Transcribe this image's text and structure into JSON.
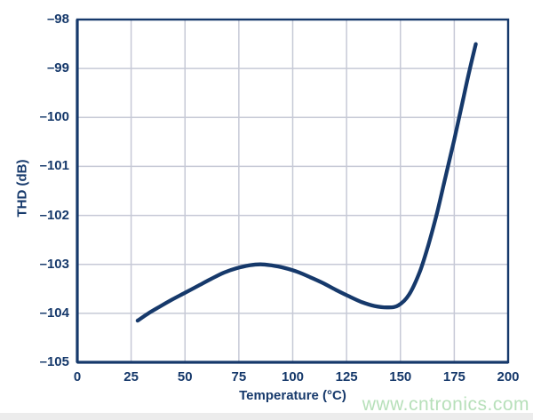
{
  "watermark": {
    "text": "www.cntronics.com",
    "color": "#b7e0ba"
  },
  "chart_data": {
    "type": "line",
    "xlabel": "Temperature (°C)",
    "ylabel": "THD (dB)",
    "xlim": [
      0,
      200
    ],
    "ylim": [
      -105,
      -98
    ],
    "grid": true,
    "legend": "none",
    "xticks": [
      0,
      25,
      50,
      75,
      100,
      125,
      150,
      175,
      200
    ],
    "xtick_labels": [
      "0",
      "25",
      "50",
      "75",
      "100",
      "125",
      "150",
      "175",
      "200"
    ],
    "yticks": [
      -98,
      -99,
      -100,
      -101,
      -102,
      -103,
      -104,
      -105
    ],
    "ytick_labels": [
      "–98",
      "–99",
      "–100",
      "–101",
      "–102",
      "–103",
      "–104",
      "–105"
    ],
    "colors": {
      "line": "#16396b",
      "grid": "#c6c9d6",
      "axis": "#16396b",
      "text": "#16396b"
    },
    "series": [
      {
        "name": "THD vs Temperature",
        "color": "#16396b",
        "x": [
          28,
          33,
          38,
          44,
          50,
          56,
          62,
          68,
          74,
          80,
          85,
          90,
          96,
          102,
          108,
          114,
          120,
          126,
          132,
          138,
          144,
          149,
          154,
          159,
          163,
          167,
          171,
          175,
          179,
          182,
          185
        ],
        "y": [
          -104.15,
          -104.0,
          -103.87,
          -103.72,
          -103.58,
          -103.44,
          -103.3,
          -103.17,
          -103.08,
          -103.02,
          -103.0,
          -103.02,
          -103.07,
          -103.15,
          -103.26,
          -103.38,
          -103.52,
          -103.65,
          -103.77,
          -103.85,
          -103.88,
          -103.84,
          -103.62,
          -103.15,
          -102.6,
          -101.95,
          -101.2,
          -100.45,
          -99.65,
          -99.05,
          -98.5
        ]
      }
    ]
  }
}
